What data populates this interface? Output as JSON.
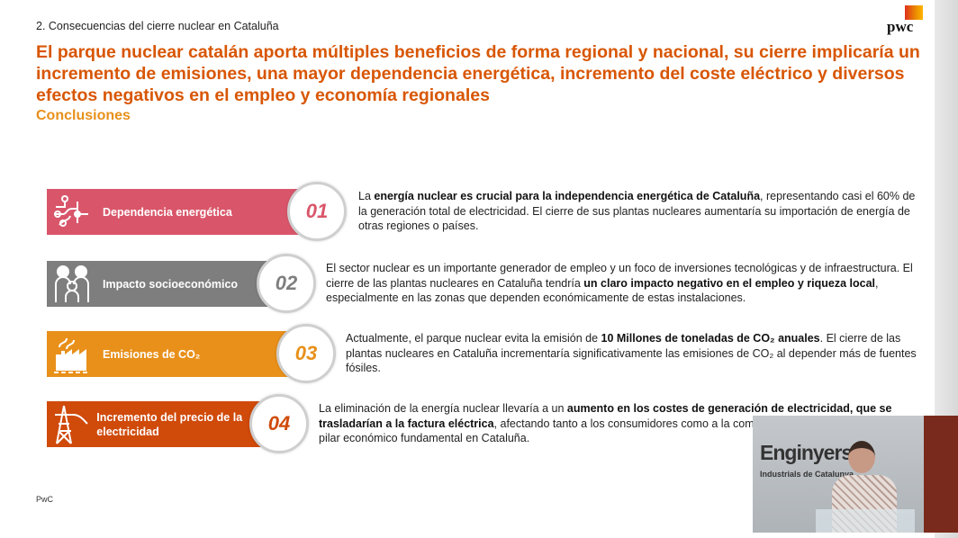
{
  "header": {
    "section": "2. Consecuencias del cierre nuclear en Cataluña",
    "title": "El parque nuclear catalán aporta múltiples beneficios de forma regional y nacional, su cierre implicaría un incremento de emisiones, una mayor dependencia energética, incremento del coste eléctrico y diversos efectos negativos en el empleo y economía regionales",
    "subtitle": "Conclusiones",
    "logo": "pwc"
  },
  "colors": {
    "title": "#d85604",
    "subtitle": "#e8901a",
    "row1": "#d9566a",
    "row2": "#7e7e7e",
    "row3": "#e8901a",
    "row4": "#d04a0a"
  },
  "rows": [
    {
      "number": "01",
      "label": "Dependencia energética",
      "icon": "circuit-icon",
      "segments": [
        {
          "t": "La ",
          "b": false
        },
        {
          "t": "energía nuclear es crucial para la independencia energética de Cataluña",
          "b": true
        },
        {
          "t": ", representando casi el 60% de la generación total de electricidad. El cierre de sus plantas nucleares aumentaría su importación de energía de otras regiones o países.",
          "b": false
        }
      ]
    },
    {
      "number": "02",
      "label": "Impacto socioeconómico",
      "icon": "family-icon",
      "segments": [
        {
          "t": "El sector nuclear es un importante generador de empleo y un foco de inversiones tecnológicas y de infraestructura. El cierre de las plantas nucleares en Cataluña tendría ",
          "b": false
        },
        {
          "t": "un claro impacto negativo en el empleo y riqueza local",
          "b": true
        },
        {
          "t": ", especialmente en las zonas que dependen económicamente de estas instalaciones.",
          "b": false
        }
      ]
    },
    {
      "number": "03",
      "label": "Emisiones de CO₂",
      "icon": "factory-icon",
      "segments": [
        {
          "t": "Actualmente, el parque nuclear evita la emisión de ",
          "b": false
        },
        {
          "t": "10 Millones de toneladas de CO₂ anuales",
          "b": true
        },
        {
          "t": ". El cierre de las plantas nucleares en Cataluña incrementaría significativamente las emisiones de CO₂ al depender más de fuentes fósiles.",
          "b": false
        }
      ]
    },
    {
      "number": "04",
      "label": "Incremento del precio de la electricidad",
      "icon": "power-tower-icon",
      "segments": [
        {
          "t": "La eliminación de la energía nuclear llevaría a un ",
          "b": false
        },
        {
          "t": "aumento en los costes de generación de electricidad, que se trasladarían a la factura eléctrica",
          "b": true
        },
        {
          "t": ", afectando tanto a los consumidores como a la competitividad de la gran industria, pilar económico fundamental en Cataluña.",
          "b": false
        }
      ]
    }
  ],
  "footer": "PwC",
  "video": {
    "sign_main": "Enginyers",
    "sign_sub": "Industrials de Catalunya"
  }
}
